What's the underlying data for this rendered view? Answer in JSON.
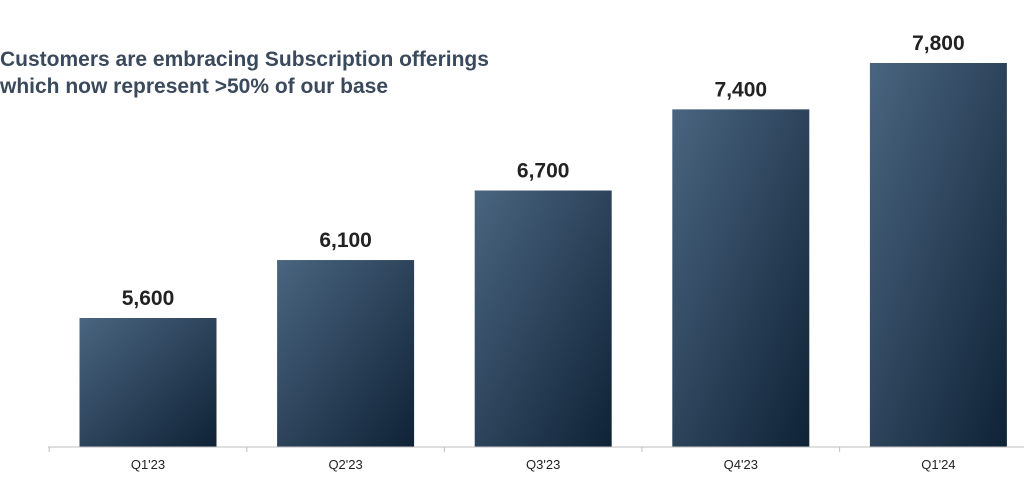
{
  "headline": {
    "line1": "Customers are embracing Subscription offerings",
    "line2": "which now represent >50% of our base"
  },
  "colors": {
    "bar_top": "#4a6580",
    "bar_bottom": "#0f2236",
    "axis": "#bfbfbf",
    "text": "#222222",
    "headline": "#3a4a5c"
  },
  "chart_data": {
    "type": "bar",
    "categories": [
      "Q1'23",
      "Q2'23",
      "Q3'23",
      "Q4'23",
      "Q1'24"
    ],
    "values": [
      5600,
      6100,
      6700,
      7400,
      7800
    ],
    "data_labels": [
      "5,600",
      "6,100",
      "6,700",
      "7,400",
      "7,800"
    ],
    "title": "Customers are embracing Subscription offerings which now represent >50% of our base",
    "xlabel": "",
    "ylabel": "",
    "grid": false,
    "legend": "none"
  }
}
